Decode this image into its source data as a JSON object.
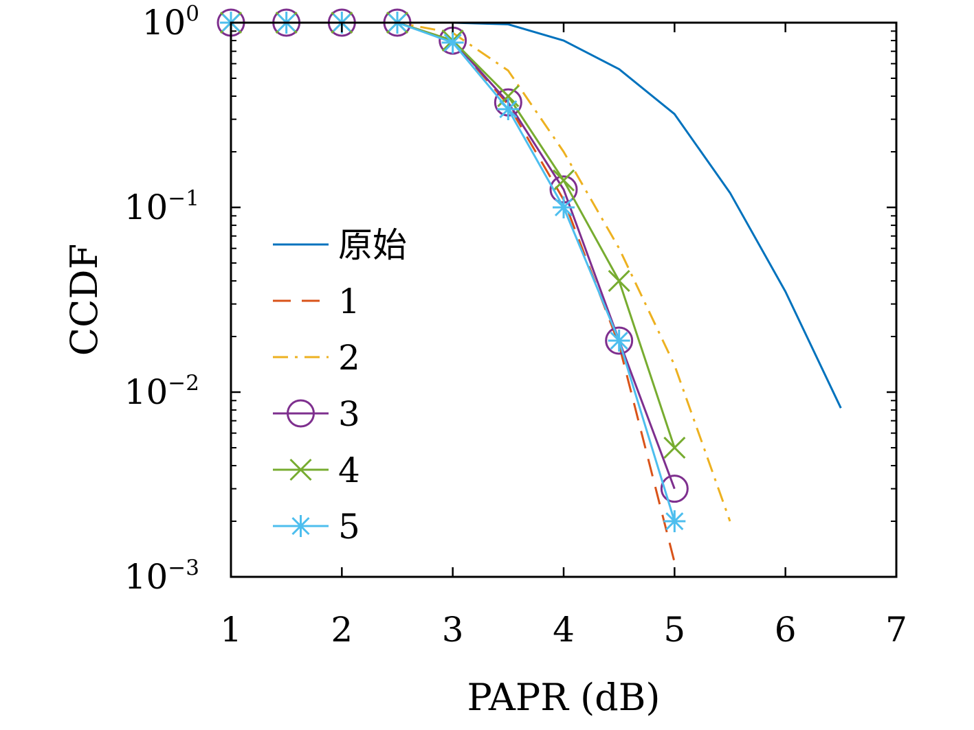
{
  "chart_data": {
    "type": "line",
    "xlabel": "PAPR (dB)",
    "ylabel": "CCDF",
    "x_scale": "linear",
    "y_scale": "log",
    "xlim": [
      1,
      7
    ],
    "ylim": [
      0.001,
      1
    ],
    "x_ticks": [
      1,
      2,
      3,
      4,
      5,
      6,
      7
    ],
    "x_tick_labels": [
      "1",
      "2",
      "3",
      "4",
      "5",
      "6",
      "7"
    ],
    "y_ticks": [
      {
        "value": 1,
        "base": "10",
        "exp": "0"
      },
      {
        "value": 0.1,
        "base": "10",
        "exp": "−1"
      },
      {
        "value": 0.01,
        "base": "10",
        "exp": "−2"
      },
      {
        "value": 0.001,
        "base": "10",
        "exp": "−3"
      }
    ],
    "grid": false,
    "legend_position": "center-left",
    "series": [
      {
        "name": "原始",
        "color": "#0072BD",
        "dash": "solid",
        "marker": "none",
        "x": [
          1,
          1.5,
          2,
          2.5,
          3,
          3.5,
          4,
          4.5,
          5,
          5.5,
          6,
          6.5
        ],
        "y": [
          1,
          1,
          1,
          1,
          1,
          0.98,
          0.8,
          0.56,
          0.32,
          0.12,
          0.035,
          0.0082
        ]
      },
      {
        "name": "1",
        "color": "#D95319",
        "dash": "dashed",
        "marker": "none",
        "x": [
          1,
          1.5,
          2,
          2.5,
          3,
          3.5,
          4,
          4.5,
          5
        ],
        "y": [
          1,
          1,
          1,
          1,
          0.8,
          0.36,
          0.11,
          0.018,
          0.0012
        ]
      },
      {
        "name": "2",
        "color": "#EDB120",
        "dash": "dashdot",
        "marker": "none",
        "x": [
          1,
          1.5,
          2,
          2.5,
          3,
          3.5,
          4,
          4.5,
          5,
          5.5
        ],
        "y": [
          1,
          1,
          1,
          1,
          0.88,
          0.55,
          0.2,
          0.06,
          0.014,
          0.002
        ]
      },
      {
        "name": "3",
        "color": "#7E2F8E",
        "dash": "solid",
        "marker": "circle",
        "x": [
          1,
          1.5,
          2,
          2.5,
          3,
          3.5,
          4,
          4.5,
          5
        ],
        "y": [
          1,
          1,
          1,
          1,
          0.8,
          0.37,
          0.125,
          0.019,
          0.003
        ]
      },
      {
        "name": "4",
        "color": "#77AC30",
        "dash": "solid",
        "marker": "x",
        "x": [
          1,
          1.5,
          2,
          2.5,
          3,
          3.5,
          4,
          4.5,
          5
        ],
        "y": [
          1,
          1,
          1,
          1,
          0.8,
          0.4,
          0.14,
          0.04,
          0.005
        ]
      },
      {
        "name": "5",
        "color": "#4DBEEE",
        "dash": "solid",
        "marker": "star",
        "x": [
          1,
          1.5,
          2,
          2.5,
          3,
          3.5,
          4,
          4.5,
          5
        ],
        "y": [
          1,
          1,
          1,
          1,
          0.78,
          0.34,
          0.1,
          0.019,
          0.002
        ]
      }
    ]
  }
}
